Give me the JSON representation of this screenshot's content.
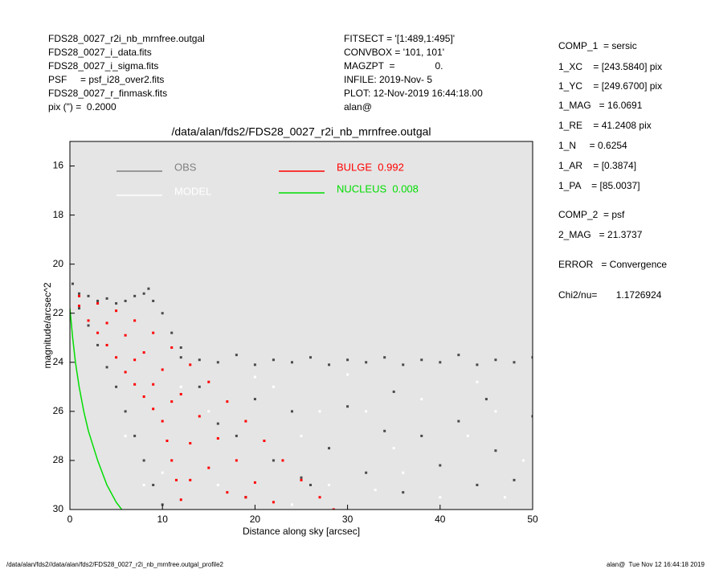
{
  "header_left": [
    "FDS28_0027_r2i_nb_mrnfree.outgal",
    "FDS28_0027_i_data.fits",
    "FDS28_0027_i_sigma.fits",
    "PSF     = psf_i28_over2.fits",
    "FDS28_0027_r_finmask.fits",
    "pix (\") =  0.2000"
  ],
  "header_middle": [
    "FITSECT = '[1:489,1:495]'",
    "CONVBOX = '101, 101'",
    "MAGZPT  =               0.",
    "INFILE: 2019-Nov- 5",
    "PLOT: 12-Nov-2019 16:44:18.00",
    "alan@"
  ],
  "header_right": [
    "COMP_1  = sersic",
    "1_XC    = [243.5840] pix",
    "1_YC    = [249.6700] pix",
    "1_MAG   = 16.0691",
    "1_RE    = 41.2408 pix",
    "1_N     = 0.6254",
    "1_AR    = [0.3874]",
    "1_PA    = [85.0037]",
    "COMP_2  = psf",
    "2_MAG   = 21.3737",
    "ERROR   = Convergence",
    "Chi2/nu=       1.1726924"
  ],
  "footer_left": "/data/alan/fds2//data/alan/fds2/FDS28_0027_r2i_nb_mrnfree.outgal_profile2",
  "footer_right": "alan@  Tue Nov 12 16:44:18 2019",
  "chart_data": {
    "type": "scatter",
    "title": "/data/alan/fds2/FDS28_0027_r2i_nb_mrnfree.outgal",
    "x_label": "Distance along sky [arcsec]",
    "y_label": "magnitude/arcsec^2",
    "xlim": [
      0,
      50
    ],
    "ylim": [
      15,
      30
    ],
    "y_inverted": true,
    "xticks": [
      0,
      10,
      20,
      30,
      40,
      50
    ],
    "yticks": [
      16,
      18,
      20,
      22,
      24,
      26,
      28,
      30
    ],
    "background": "#e5e5e5",
    "series": [
      {
        "name": "OBS",
        "color": "#4a4a4a",
        "style": "points",
        "legend_color": "#808080",
        "x": [
          12,
          14,
          16,
          18,
          20,
          22,
          24,
          26,
          28,
          30,
          32,
          34,
          36,
          38,
          40,
          42,
          44,
          46,
          48,
          50,
          0.3,
          1,
          2,
          3,
          4,
          5,
          6,
          7,
          8,
          8.5,
          9,
          10,
          11,
          12,
          1,
          2,
          3,
          4,
          5,
          6,
          7,
          8,
          9,
          10,
          14,
          16,
          18,
          20,
          22,
          24,
          26,
          28,
          30,
          32,
          34,
          36,
          38,
          40,
          42,
          44,
          46,
          48,
          50,
          19,
          25,
          35,
          45
        ],
        "values": [
          23.8,
          23.9,
          24.0,
          23.7,
          24.1,
          23.9,
          24.0,
          23.8,
          24.1,
          23.9,
          24.0,
          23.8,
          24.1,
          23.9,
          24.0,
          23.7,
          24.1,
          23.9,
          24.0,
          23.8,
          20.8,
          21.2,
          21.3,
          21.5,
          21.4,
          21.6,
          21.5,
          21.3,
          21.2,
          21.0,
          21.5,
          22.0,
          22.8,
          23.4,
          21.8,
          22.5,
          23.3,
          24.2,
          25.0,
          26.0,
          27.0,
          28.0,
          29.0,
          29.8,
          25,
          26.5,
          27,
          25.5,
          28,
          26,
          29,
          27.5,
          25.8,
          28.5,
          26.8,
          29.3,
          27,
          28.2,
          26.4,
          29,
          27.6,
          28.8,
          26.2,
          29.5,
          28.7,
          25.2,
          25.5
        ]
      },
      {
        "name": "MODEL",
        "color": "#ffffff",
        "style": "points",
        "x": [
          6,
          8,
          12,
          15,
          18,
          22,
          25,
          28,
          32,
          35,
          38,
          40,
          43,
          46,
          49,
          10,
          20,
          30,
          36,
          44,
          27,
          33,
          47,
          16,
          24
        ],
        "values": [
          27,
          29,
          25,
          26,
          28,
          25,
          27,
          29,
          26,
          27.5,
          25.5,
          29.5,
          27,
          26,
          28,
          28.5,
          24.6,
          24.5,
          28.5,
          24.8,
          26,
          29.2,
          29.5,
          29,
          29.8
        ]
      },
      {
        "name": "BULGE  0.992",
        "color": "#ff0000",
        "style": "points",
        "x": [
          1,
          3,
          5,
          7,
          9,
          11,
          13,
          15,
          17,
          19,
          21,
          23,
          25,
          27,
          28.5,
          1,
          2,
          3,
          4,
          5,
          6,
          7,
          8,
          9,
          10,
          10.5,
          11,
          11.5,
          12,
          4,
          6,
          8,
          10,
          12,
          14,
          16,
          18,
          20,
          22,
          7,
          9,
          11,
          13,
          15,
          17,
          13,
          19
        ],
        "values": [
          21.3,
          21.6,
          21.9,
          22.3,
          22.8,
          23.4,
          24.1,
          24.8,
          25.6,
          26.4,
          27.2,
          28.0,
          28.8,
          29.5,
          30,
          21.7,
          22.3,
          22.8,
          23.3,
          23.8,
          24.4,
          24.9,
          25.4,
          25.9,
          26.4,
          27.2,
          28,
          28.8,
          29.6,
          22.4,
          22.9,
          23.6,
          24.3,
          25.3,
          26.2,
          27.1,
          28.0,
          28.9,
          29.7,
          23.9,
          24.9,
          25.6,
          27.3,
          28.3,
          29.3,
          28.8,
          29.5
        ]
      },
      {
        "name": "NUCLEUS  0.008",
        "color": "#00dd00",
        "style": "line",
        "x": [
          0,
          0.3,
          0.6,
          1,
          1.5,
          2,
          3,
          4,
          5,
          5.6
        ],
        "values": [
          21.8,
          23,
          24,
          25,
          26,
          26.8,
          28,
          29,
          29.7,
          30
        ]
      }
    ]
  }
}
